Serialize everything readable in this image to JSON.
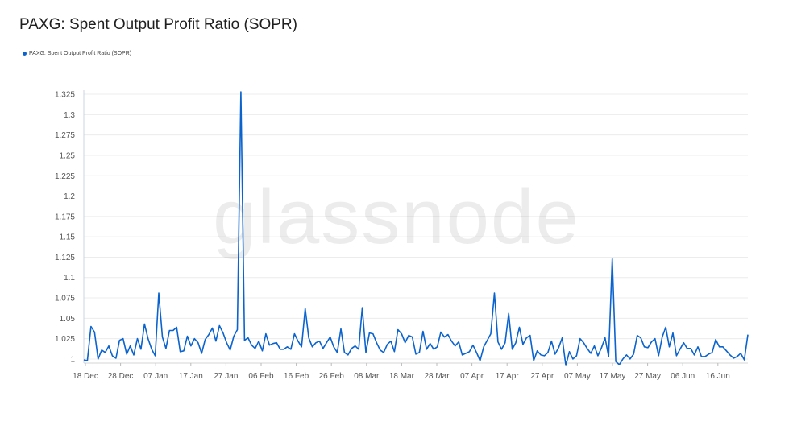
{
  "title": "PAXG: Spent Output Profit Ratio (SOPR)",
  "legend": {
    "label": "PAXG: Spent Output Profit Ratio (SOPR)",
    "color": "#0b63ce"
  },
  "watermark": "glassnode",
  "chart_data": {
    "type": "line",
    "title": "PAXG: Spent Output Profit Ratio (SOPR)",
    "ylim": [
      0.995,
      1.33
    ],
    "y_ticks": [
      "1",
      "1.025",
      "1.05",
      "1.075",
      "1.1",
      "1.125",
      "1.15",
      "1.175",
      "1.2",
      "1.225",
      "1.25",
      "1.275",
      "1.3",
      "1.325"
    ],
    "x_ticks": [
      "18 Dec",
      "28 Dec",
      "07 Jan",
      "17 Jan",
      "27 Jan",
      "06 Feb",
      "16 Feb",
      "26 Feb",
      "08 Mar",
      "18 Mar",
      "28 Mar",
      "07 Apr",
      "17 Apr",
      "27 Apr",
      "07 May",
      "17 May",
      "27 May",
      "06 Jun",
      "16 Jun"
    ],
    "grid": true,
    "legend_position": "top-left",
    "series": [
      {
        "name": "PAXG: Spent Output Profit Ratio (SOPR)",
        "color": "#0b63ce",
        "values": [
          0.999,
          0.998,
          1.04,
          1.033,
          1.0,
          1.011,
          1.008,
          1.016,
          1.004,
          1.001,
          1.023,
          1.025,
          1.006,
          1.016,
          1.005,
          1.025,
          1.012,
          1.043,
          1.025,
          1.012,
          1.004,
          1.081,
          1.027,
          1.013,
          1.035,
          1.035,
          1.039,
          1.009,
          1.01,
          1.028,
          1.016,
          1.025,
          1.02,
          1.007,
          1.024,
          1.03,
          1.038,
          1.022,
          1.041,
          1.032,
          1.02,
          1.011,
          1.028,
          1.036,
          1.328,
          1.023,
          1.026,
          1.017,
          1.013,
          1.022,
          1.01,
          1.031,
          1.017,
          1.019,
          1.02,
          1.012,
          1.012,
          1.015,
          1.012,
          1.031,
          1.022,
          1.015,
          1.062,
          1.026,
          1.015,
          1.02,
          1.022,
          1.013,
          1.02,
          1.027,
          1.015,
          1.008,
          1.037,
          1.008,
          1.005,
          1.013,
          1.016,
          1.012,
          1.063,
          1.008,
          1.032,
          1.031,
          1.02,
          1.011,
          1.008,
          1.018,
          1.022,
          1.009,
          1.036,
          1.031,
          1.02,
          1.029,
          1.027,
          1.006,
          1.008,
          1.034,
          1.012,
          1.019,
          1.012,
          1.015,
          1.033,
          1.027,
          1.03,
          1.022,
          1.016,
          1.021,
          1.005,
          1.007,
          1.009,
          1.017,
          1.008,
          0.998,
          1.015,
          1.023,
          1.031,
          1.081,
          1.021,
          1.012,
          1.02,
          1.056,
          1.012,
          1.02,
          1.039,
          1.018,
          1.026,
          1.029,
          0.998,
          1.01,
          1.005,
          1.004,
          1.008,
          1.022,
          1.006,
          1.014,
          1.026,
          0.992,
          1.009,
          1.0,
          1.004,
          1.025,
          1.02,
          1.013,
          1.007,
          1.016,
          1.004,
          1.014,
          1.026,
          1.003,
          1.123,
          0.997,
          0.993,
          1.0,
          1.005,
          1.0,
          1.006,
          1.029,
          1.026,
          1.015,
          1.014,
          1.021,
          1.025,
          1.004,
          1.027,
          1.039,
          1.015,
          1.032,
          1.004,
          1.012,
          1.02,
          1.013,
          1.013,
          1.005,
          1.015,
          1.003,
          1.003,
          1.006,
          1.008,
          1.024,
          1.015,
          1.015,
          1.01,
          1.005,
          1.001,
          1.003,
          1.007,
          0.999,
          1.03
        ]
      }
    ]
  }
}
